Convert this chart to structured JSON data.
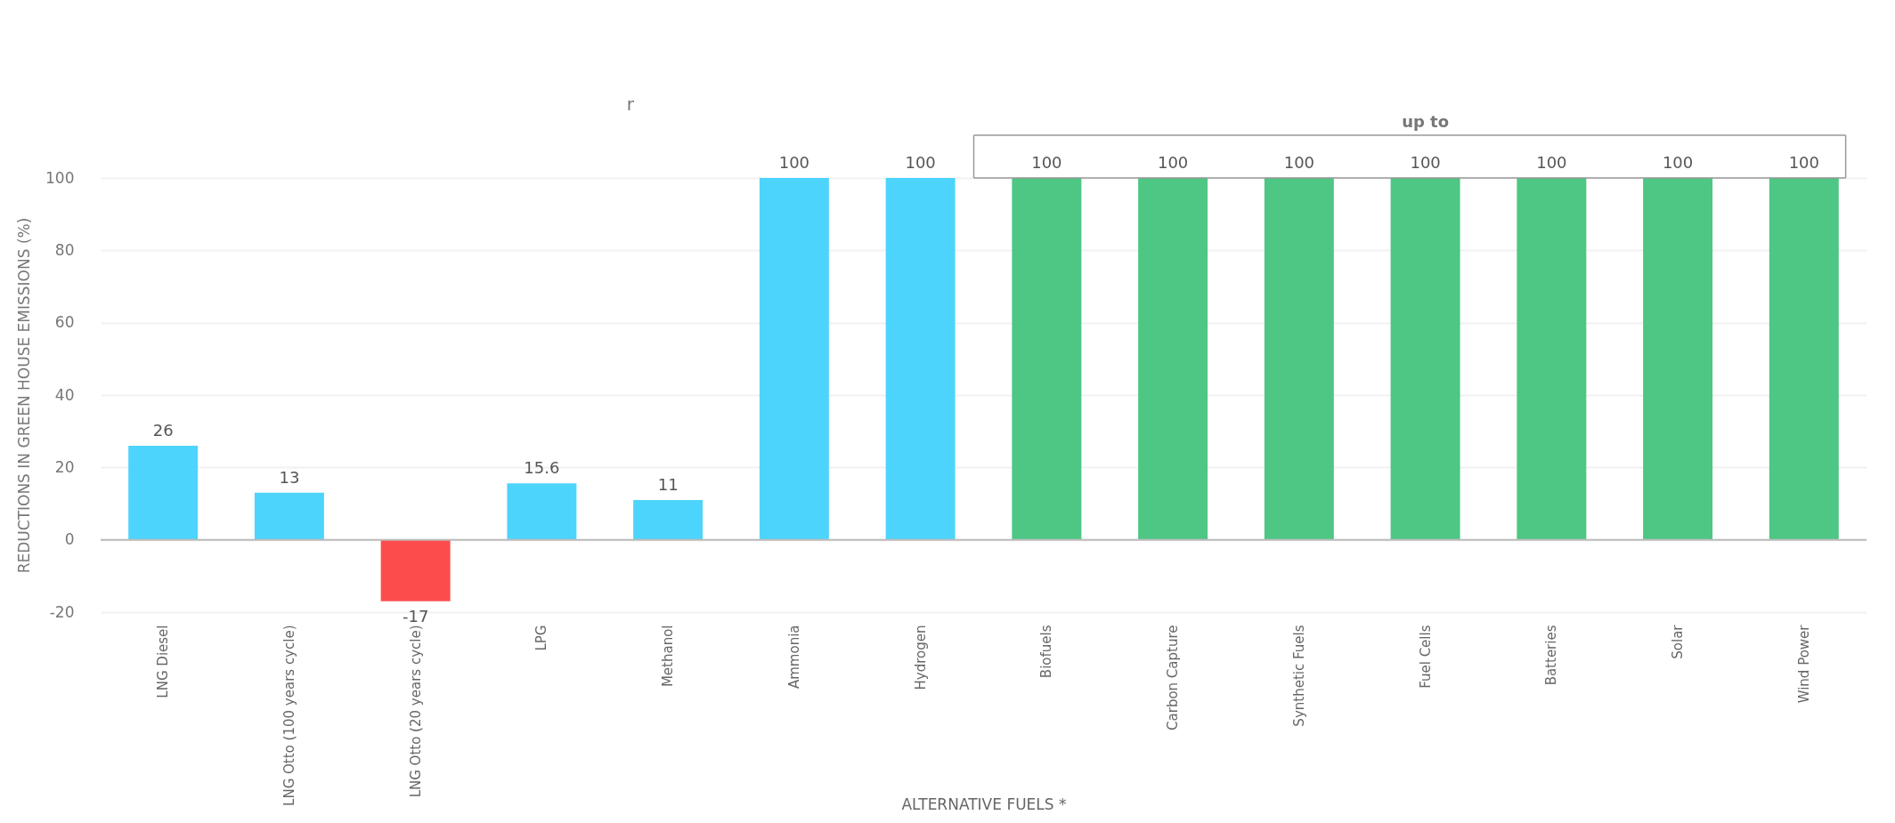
{
  "chart_data": {
    "type": "bar",
    "categories": [
      "LNG Diesel",
      "LNG Otto (100 years cycle)",
      "LNG Otto (20 years cycle)",
      "LPG",
      "Methanol",
      "Ammonia",
      "Hydrogen",
      "Biofuels",
      "Carbon Capture",
      "Synthetic Fuels",
      "Fuel Cells",
      "Batteries",
      "Solar",
      "Wind Power"
    ],
    "values": [
      26,
      13,
      -17,
      15.6,
      11,
      100,
      100,
      100,
      100,
      100,
      100,
      100,
      100,
      100
    ],
    "colors": [
      "#4dd4fc",
      "#4dd4fc",
      "#fd4c4c",
      "#4dd4fc",
      "#4dd4fc",
      "#4dd4fc",
      "#4dd4fc",
      "#4ec684",
      "#4ec684",
      "#4ec684",
      "#4ec684",
      "#4ec684",
      "#4ec684",
      "#4ec684"
    ],
    "xlabel": "ALTERNATIVE FUELS *",
    "ylabel": "REDUCTIONS IN GREEN HOUSE EMISSIONS (%)",
    "ylim": [
      -20,
      100
    ],
    "yticks": [
      -20,
      0,
      20,
      40,
      60,
      80,
      100
    ],
    "grid": "y",
    "data_labels": true,
    "legend": false,
    "annotations": [
      "r",
      "up to"
    ]
  }
}
